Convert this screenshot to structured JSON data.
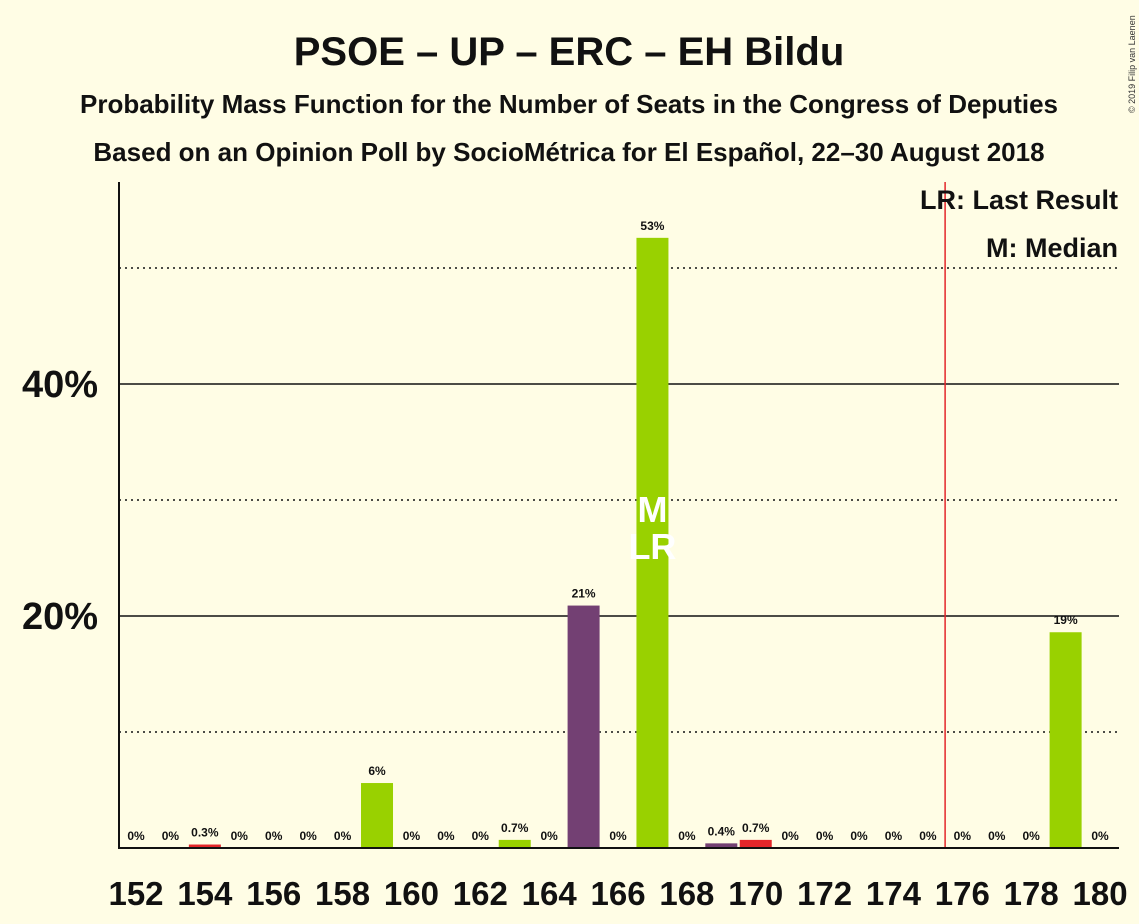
{
  "chart_data": {
    "type": "bar",
    "title": "PSOE – UP – ERC – EH Bildu",
    "subtitle": "Probability Mass Function for the Number of Seats in the Congress of Deputies",
    "subtitle2": "Based on an Opinion Poll by SocioMétrica for El Español, 22–30 August 2018",
    "copyright": "© 2019 Filip van Laenen",
    "legend": [
      "LR: Last Result",
      "M: Median"
    ],
    "ylim": [
      0,
      57
    ],
    "yticks": [
      {
        "value": 20,
        "label": "20%"
      },
      {
        "value": 40,
        "label": "40%"
      }
    ],
    "minor_gridlines": [
      10,
      30,
      50
    ],
    "x_tick_labels": [
      152,
      154,
      156,
      158,
      160,
      162,
      164,
      166,
      168,
      170,
      172,
      174,
      176,
      178,
      180
    ],
    "last_result_seat": 176,
    "median_seat": 167,
    "marker_labels": [
      "M",
      "LR"
    ],
    "colors": {
      "green": "#99d100",
      "purple": "#734073",
      "red": "#e3262a",
      "line": "#e3262a"
    },
    "bars": [
      {
        "seat": 152,
        "value": 0,
        "label": "0%",
        "color": "green"
      },
      {
        "seat": 153,
        "value": 0,
        "label": "0%",
        "color": "green"
      },
      {
        "seat": 154,
        "value": 0.3,
        "label": "0.3%",
        "color": "red"
      },
      {
        "seat": 155,
        "value": 0,
        "label": "0%",
        "color": "green"
      },
      {
        "seat": 156,
        "value": 0,
        "label": "0%",
        "color": "green"
      },
      {
        "seat": 157,
        "value": 0,
        "label": "0%",
        "color": "green"
      },
      {
        "seat": 158,
        "value": 0,
        "label": "0%",
        "color": "green"
      },
      {
        "seat": 159,
        "value": 5.6,
        "label": "6%",
        "color": "green"
      },
      {
        "seat": 160,
        "value": 0,
        "label": "0%",
        "color": "green"
      },
      {
        "seat": 161,
        "value": 0,
        "label": "0%",
        "color": "green"
      },
      {
        "seat": 162,
        "value": 0,
        "label": "0%",
        "color": "green"
      },
      {
        "seat": 163,
        "value": 0.7,
        "label": "0.7%",
        "color": "green"
      },
      {
        "seat": 164,
        "value": 0,
        "label": "0%",
        "color": "green"
      },
      {
        "seat": 165,
        "value": 20.9,
        "label": "21%",
        "color": "purple"
      },
      {
        "seat": 166,
        "value": 0,
        "label": "0%",
        "color": "green"
      },
      {
        "seat": 167,
        "value": 52.6,
        "label": "53%",
        "color": "green"
      },
      {
        "seat": 168,
        "value": 0,
        "label": "0%",
        "color": "green"
      },
      {
        "seat": 169,
        "value": 0.4,
        "label": "0.4%",
        "color": "purple"
      },
      {
        "seat": 170,
        "value": 0.7,
        "label": "0.7%",
        "color": "red"
      },
      {
        "seat": 171,
        "value": 0,
        "label": "0%",
        "color": "green"
      },
      {
        "seat": 172,
        "value": 0,
        "label": "0%",
        "color": "green"
      },
      {
        "seat": 173,
        "value": 0,
        "label": "0%",
        "color": "green"
      },
      {
        "seat": 174,
        "value": 0,
        "label": "0%",
        "color": "green"
      },
      {
        "seat": 175,
        "value": 0,
        "label": "0%",
        "color": "green"
      },
      {
        "seat": 176,
        "value": 0,
        "label": "0%",
        "color": "green"
      },
      {
        "seat": 177,
        "value": 0,
        "label": "0%",
        "color": "green"
      },
      {
        "seat": 178,
        "value": 0,
        "label": "0%",
        "color": "green"
      },
      {
        "seat": 179,
        "value": 18.6,
        "label": "19%",
        "color": "green"
      },
      {
        "seat": 180,
        "value": 0,
        "label": "0%",
        "color": "green"
      }
    ]
  }
}
